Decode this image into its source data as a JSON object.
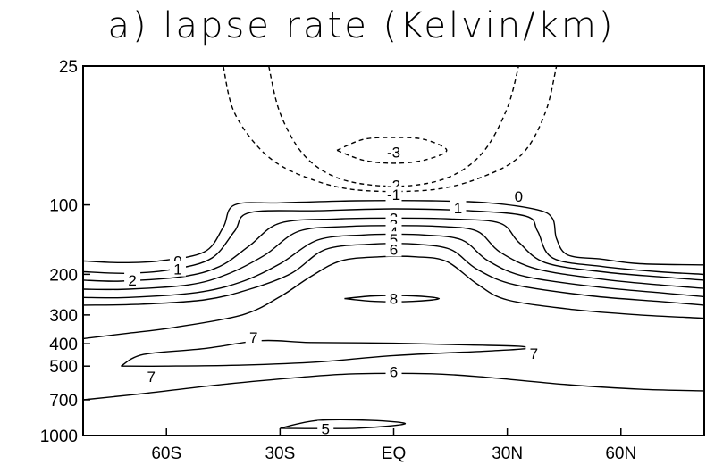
{
  "chart_data": {
    "type": "contour",
    "title": "a) lapse rate (Kelvin/km)",
    "xlabel": "",
    "ylabel": "",
    "x_axis": {
      "range": [
        -82,
        82
      ],
      "ticks": [
        {
          "value": -60,
          "label": "60S"
        },
        {
          "value": -30,
          "label": "30S"
        },
        {
          "value": 0,
          "label": "EQ"
        },
        {
          "value": 30,
          "label": "30N"
        },
        {
          "value": 60,
          "label": "60N"
        }
      ]
    },
    "y_axis": {
      "scale": "log",
      "reversed": true,
      "range": [
        1000,
        25
      ],
      "ticks": [
        {
          "value": 25,
          "label": "25"
        },
        {
          "value": 100,
          "label": "100"
        },
        {
          "value": 200,
          "label": "200"
        },
        {
          "value": 300,
          "label": "300"
        },
        {
          "value": 400,
          "label": "400"
        },
        {
          "value": 500,
          "label": "500"
        },
        {
          "value": 700,
          "label": "700"
        },
        {
          "value": 1000,
          "label": "1000"
        }
      ]
    },
    "negative_dashed": true,
    "contours": [
      {
        "level": -3,
        "dashed": true,
        "points": [
          [
            -15,
            58
          ],
          [
            -8,
            52
          ],
          [
            0,
            51
          ],
          [
            8,
            52
          ],
          [
            14,
            58
          ],
          [
            8,
            64
          ],
          [
            0,
            66
          ],
          [
            -8,
            64
          ],
          [
            -15,
            58
          ]
        ]
      },
      {
        "level": -2,
        "dashed": true,
        "points": [
          [
            -33,
            25
          ],
          [
            -30,
            40
          ],
          [
            -24,
            60
          ],
          [
            -16,
            75
          ],
          [
            -6,
            82
          ],
          [
            6,
            82
          ],
          [
            16,
            74
          ],
          [
            24,
            58
          ],
          [
            30,
            38
          ],
          [
            33,
            25
          ]
        ]
      },
      {
        "level": -1,
        "dashed": true,
        "points": [
          [
            -45,
            25
          ],
          [
            -42,
            40
          ],
          [
            -34,
            60
          ],
          [
            -24,
            75
          ],
          [
            -10,
            86
          ],
          [
            10,
            86
          ],
          [
            24,
            75
          ],
          [
            34,
            60
          ],
          [
            40,
            40
          ],
          [
            43,
            25
          ]
        ]
      },
      {
        "level": 0,
        "dashed": false,
        "points": [
          [
            -82,
            175
          ],
          [
            -72,
            178
          ],
          [
            -62,
            175
          ],
          [
            -50,
            160
          ],
          [
            -45,
            125
          ],
          [
            -42,
            100
          ],
          [
            -30,
            98
          ],
          [
            -10,
            96
          ],
          [
            10,
            96
          ],
          [
            25,
            98
          ],
          [
            38,
            105
          ],
          [
            42,
            115
          ],
          [
            43,
            140
          ],
          [
            46,
            165
          ],
          [
            55,
            172
          ],
          [
            65,
            180
          ],
          [
            82,
            182
          ]
        ]
      },
      {
        "level": 1,
        "dashed": false,
        "points": [
          [
            -82,
            195
          ],
          [
            -70,
            198
          ],
          [
            -58,
            190
          ],
          [
            -48,
            170
          ],
          [
            -42,
            130
          ],
          [
            -38,
            108
          ],
          [
            -20,
            106
          ],
          [
            0,
            104
          ],
          [
            20,
            106
          ],
          [
            35,
            112
          ],
          [
            38,
            130
          ],
          [
            42,
            170
          ],
          [
            55,
            185
          ],
          [
            70,
            195
          ],
          [
            82,
            200
          ]
        ]
      },
      {
        "level": 2,
        "dashed": false,
        "points": [
          [
            -82,
            212
          ],
          [
            -72,
            214
          ],
          [
            -56,
            205
          ],
          [
            -46,
            185
          ],
          [
            -38,
            150
          ],
          [
            -30,
            120
          ],
          [
            -15,
            115
          ],
          [
            0,
            114
          ],
          [
            15,
            115
          ],
          [
            28,
            120
          ],
          [
            33,
            145
          ],
          [
            40,
            178
          ],
          [
            55,
            195
          ],
          [
            70,
            205
          ],
          [
            82,
            212
          ]
        ]
      },
      {
        "level": 3,
        "dashed": false,
        "points": [
          [
            -82,
            232
          ],
          [
            -70,
            232
          ],
          [
            -54,
            222
          ],
          [
            -44,
            200
          ],
          [
            -34,
            165
          ],
          [
            -25,
            130
          ],
          [
            -12,
            124
          ],
          [
            0,
            123
          ],
          [
            12,
            124
          ],
          [
            22,
            130
          ],
          [
            28,
            160
          ],
          [
            38,
            190
          ],
          [
            55,
            210
          ],
          [
            70,
            222
          ],
          [
            82,
            230
          ]
        ]
      },
      {
        "level": 4,
        "dashed": false,
        "points": [
          [
            -82,
            252
          ],
          [
            -70,
            252
          ],
          [
            -52,
            240
          ],
          [
            -40,
            215
          ],
          [
            -30,
            180
          ],
          [
            -20,
            142
          ],
          [
            -8,
            135
          ],
          [
            0,
            134
          ],
          [
            8,
            135
          ],
          [
            18,
            142
          ],
          [
            25,
            175
          ],
          [
            35,
            205
          ],
          [
            55,
            228
          ],
          [
            70,
            240
          ],
          [
            82,
            250
          ]
        ]
      },
      {
        "level": 5,
        "dashed": false,
        "points": [
          [
            -82,
            272
          ],
          [
            -68,
            270
          ],
          [
            -50,
            258
          ],
          [
            -38,
            232
          ],
          [
            -27,
            198
          ],
          [
            -18,
            156
          ],
          [
            -6,
            148
          ],
          [
            0,
            147
          ],
          [
            6,
            148
          ],
          [
            15,
            156
          ],
          [
            22,
            190
          ],
          [
            32,
            222
          ],
          [
            52,
            248
          ],
          [
            70,
            262
          ],
          [
            82,
            272
          ]
        ]
      },
      {
        "level": 6,
        "dashed": false,
        "points": [
          [
            -82,
            380
          ],
          [
            -70,
            360
          ],
          [
            -58,
            340
          ],
          [
            -40,
            300
          ],
          [
            -30,
            250
          ],
          [
            -22,
            205
          ],
          [
            -14,
            175
          ],
          [
            -4,
            168
          ],
          [
            6,
            168
          ],
          [
            14,
            176
          ],
          [
            22,
            220
          ],
          [
            30,
            258
          ],
          [
            48,
            285
          ],
          [
            65,
            300
          ],
          [
            82,
            310
          ]
        ]
      },
      {
        "level": 7,
        "dashed": false,
        "points": [
          [
            -72,
            500
          ],
          [
            -66,
            445
          ],
          [
            -50,
            420
          ],
          [
            -35,
            388
          ],
          [
            -22,
            395
          ],
          [
            0,
            398
          ],
          [
            20,
            405
          ],
          [
            33,
            410
          ],
          [
            35,
            420
          ],
          [
            25,
            430
          ],
          [
            0,
            450
          ],
          [
            -20,
            480
          ],
          [
            -40,
            495
          ],
          [
            -60,
            500
          ],
          [
            -72,
            500
          ]
        ]
      },
      {
        "level": 8,
        "dashed": false,
        "points": [
          [
            -13,
            255
          ],
          [
            -5,
            248
          ],
          [
            5,
            248
          ],
          [
            12,
            255
          ],
          [
            5,
            262
          ],
          [
            -5,
            262
          ],
          [
            -13,
            255
          ]
        ]
      },
      {
        "level": 6,
        "dashed": false,
        "points": [
          [
            -82,
            700
          ],
          [
            -65,
            655
          ],
          [
            -45,
            600
          ],
          [
            -25,
            560
          ],
          [
            -10,
            540
          ],
          [
            10,
            540
          ],
          [
            25,
            560
          ],
          [
            45,
            600
          ],
          [
            65,
            630
          ],
          [
            82,
            640
          ]
        ]
      },
      {
        "level": 5,
        "dashed": false,
        "points": [
          [
            -30,
            930
          ],
          [
            -20,
            860
          ],
          [
            -6,
            860
          ],
          [
            3,
            890
          ],
          [
            -10,
            930
          ],
          [
            -30,
            930
          ]
        ]
      }
    ],
    "contour_labels": [
      {
        "text": "-3",
        "x": 0,
        "y": 59
      },
      {
        "text": "-2",
        "x": 0,
        "y": 82
      },
      {
        "text": "-1",
        "x": 0,
        "y": 90
      },
      {
        "text": "0",
        "x": 33,
        "y": 92
      },
      {
        "text": "1",
        "x": 17,
        "y": 103
      },
      {
        "text": "0",
        "x": -57,
        "y": 175
      },
      {
        "text": "1",
        "x": -57,
        "y": 190
      },
      {
        "text": "2",
        "x": -69,
        "y": 212
      },
      {
        "text": "2",
        "x": 0,
        "y": 114
      },
      {
        "text": "3",
        "x": 0,
        "y": 122
      },
      {
        "text": "4",
        "x": 0,
        "y": 131
      },
      {
        "text": "5",
        "x": 0,
        "y": 141
      },
      {
        "text": "6",
        "x": 0,
        "y": 156
      },
      {
        "text": "8",
        "x": 0,
        "y": 255
      },
      {
        "text": "7",
        "x": -37,
        "y": 375
      },
      {
        "text": "7",
        "x": 37,
        "y": 440
      },
      {
        "text": "7",
        "x": -64,
        "y": 555
      },
      {
        "text": "6",
        "x": 0,
        "y": 530
      },
      {
        "text": "5",
        "x": -18,
        "y": 935
      }
    ]
  }
}
